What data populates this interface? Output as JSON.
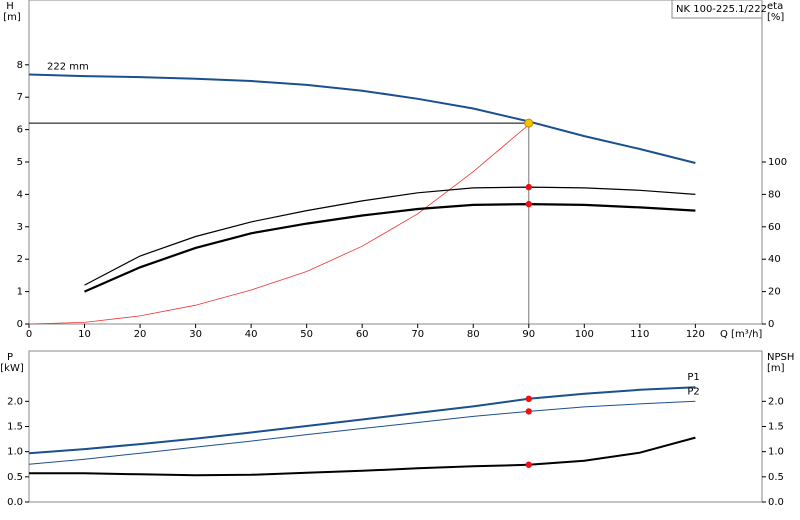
{
  "chart_data": [
    {
      "type": "line",
      "title": "NK 100-225.1/222",
      "y_label": "H",
      "y_unit": "[m]",
      "y2_label": "eta",
      "y2_unit": "[%]",
      "x_label": "Q [m³/h]",
      "x": [
        0,
        10,
        20,
        30,
        40,
        50,
        60,
        70,
        80,
        90,
        100,
        110,
        120
      ],
      "xlim": [
        0,
        132
      ],
      "xticks": [
        0,
        10,
        20,
        30,
        40,
        50,
        60,
        70,
        80,
        90,
        100,
        110,
        120
      ],
      "ylim": [
        0,
        10
      ],
      "yticks": [
        0,
        1,
        2,
        3,
        4,
        5,
        6,
        7,
        8
      ],
      "y2lim": [
        0,
        200
      ],
      "y2ticks": [
        0,
        20,
        40,
        60,
        80,
        100
      ],
      "marker_x": 90,
      "duty_point": {
        "x": 90,
        "y": 6.2,
        "color": "#f5c400"
      },
      "series": [
        {
          "name": "222 mm",
          "color": "#1c4f8f",
          "width": 2,
          "values": [
            7.7,
            7.65,
            7.62,
            7.57,
            7.5,
            7.38,
            7.2,
            6.95,
            6.65,
            6.25,
            5.8,
            5.4,
            4.97
          ]
        },
        {
          "color": "#ee3333",
          "width": 0.8,
          "values": [
            0,
            0.05,
            0.25,
            0.58,
            1.05,
            1.62,
            2.4,
            3.4,
            4.7,
            6.15,
            null,
            null,
            null
          ]
        },
        {
          "color": "#000000",
          "width": 1.2,
          "axis": "y2",
          "marker": true,
          "values": [
            null,
            24,
            42,
            54,
            63,
            70,
            76,
            81,
            84,
            84.5,
            84,
            82.5,
            80
          ]
        },
        {
          "color": "#000000",
          "width": 2.2,
          "axis": "y2",
          "marker": true,
          "values": [
            null,
            20,
            35,
            47,
            56,
            62,
            67,
            71,
            73.5,
            74,
            73.5,
            72,
            70
          ]
        }
      ]
    },
    {
      "type": "line",
      "y_label": "P",
      "y_unit": "[kW]",
      "y2_label": "NPSH",
      "y2_unit": "[m]",
      "x": [
        0,
        10,
        20,
        30,
        40,
        50,
        60,
        70,
        80,
        90,
        100,
        110,
        120
      ],
      "xlim": [
        0,
        132
      ],
      "ylim": [
        0,
        3
      ],
      "yticks": [
        {
          "value": 0,
          "label": "0.0"
        },
        0.5,
        {
          "value": 1,
          "label": "1.0"
        },
        1.5,
        {
          "value": 2,
          "label": "2.0"
        }
      ],
      "y2lim": [
        0,
        3
      ],
      "y2ticks": [
        {
          "value": 0,
          "label": "0.0"
        },
        0.5,
        {
          "value": 1,
          "label": "1.0"
        },
        1.5,
        {
          "value": 2,
          "label": "2.0"
        }
      ],
      "marker_x": 90,
      "series": [
        {
          "name": "P1",
          "color": "#1c4f8f",
          "width": 2,
          "marker": true,
          "values": [
            0.97,
            1.05,
            1.15,
            1.26,
            1.38,
            1.51,
            1.64,
            1.77,
            1.9,
            2.05,
            2.15,
            2.23,
            2.28
          ]
        },
        {
          "name": "P2",
          "color": "#1c4f8f",
          "width": 1,
          "marker": true,
          "values": [
            0.75,
            0.85,
            0.97,
            1.09,
            1.21,
            1.34,
            1.46,
            1.58,
            1.7,
            1.8,
            1.89,
            1.95,
            2.0
          ]
        },
        {
          "color": "#000000",
          "width": 2,
          "axis": "y2",
          "marker": true,
          "values": [
            0.57,
            0.57,
            0.55,
            0.53,
            0.54,
            0.58,
            0.62,
            0.67,
            0.71,
            0.74,
            0.82,
            0.98,
            1.28
          ]
        }
      ]
    }
  ]
}
